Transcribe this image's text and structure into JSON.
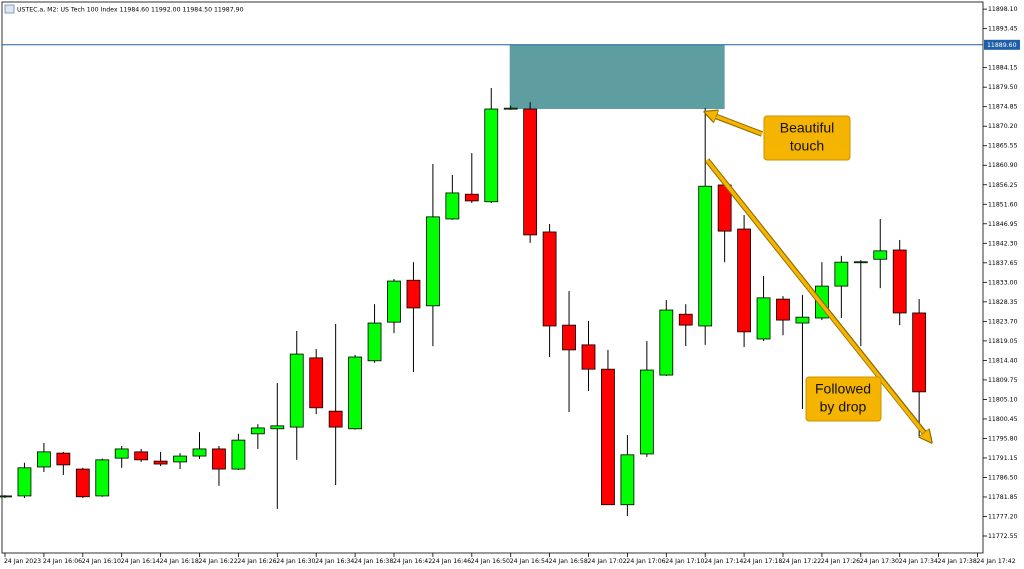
{
  "chart_data": {
    "type": "candlestick",
    "title": "USTEC.a, M2:  US Tech 100 Index  11984.60 11992.00 11984.50 11987.90",
    "open": [
      11782.1,
      11782.1,
      11789.0,
      11792.3,
      11788.5,
      11782.1,
      11791.1,
      11792.6,
      11790.4,
      11790.2,
      11791.6,
      11793.3,
      11788.5,
      11796.9,
      11798.1,
      11798.5,
      11815.0,
      11802.3,
      11798.1,
      11814.3,
      11823.5,
      11833.5,
      11827.4,
      11848.1,
      11854.0,
      11852.2,
      11874.3,
      11874.3,
      11845.0,
      11822.8,
      11818.1,
      11812.3,
      11780.0,
      11792.1,
      11810.9,
      11825.4,
      11822.6,
      11856.2,
      11845.7,
      11819.5,
      11829.0,
      11823.3,
      11824.5,
      11832.1,
      11837.8,
      11838.5,
      11840.7,
      11825.7
    ],
    "high": [
      11782.3,
      11790.0,
      11794.7,
      11792.6,
      11788.8,
      11791.0,
      11794.0,
      11793.3,
      11792.6,
      11792.3,
      11797.3,
      11794.0,
      11796.9,
      11799.2,
      11809.0,
      11821.4,
      11817.1,
      11823.1,
      11815.7,
      11827.8,
      11833.8,
      11837.8,
      11861.2,
      11858.6,
      11863.8,
      11879.3,
      11875.1,
      11875.9,
      11846.9,
      11830.9,
      11823.8,
      11816.9,
      11796.6,
      11819.0,
      11828.8,
      11827.8,
      11874.5,
      11857.1,
      11849.0,
      11834.5,
      11829.7,
      11830.0,
      11837.8,
      11839.3,
      11838.3,
      11848.1,
      11843.1,
      11829.0
    ],
    "low": [
      11781.6,
      11781.6,
      11787.8,
      11787.1,
      11781.6,
      11781.9,
      11788.8,
      11790.2,
      11789.2,
      11788.5,
      11790.9,
      11784.5,
      11788.3,
      11793.3,
      11779.0,
      11790.7,
      11801.6,
      11784.7,
      11797.9,
      11813.8,
      11820.9,
      11811.6,
      11817.8,
      11847.9,
      11851.9,
      11851.9,
      11874.1,
      11842.4,
      11815.2,
      11802.1,
      11807.1,
      11780.0,
      11777.3,
      11791.4,
      11810.7,
      11817.8,
      11818.1,
      11837.8,
      11817.6,
      11819.0,
      11820.4,
      11802.8,
      11824.0,
      11824.5,
      11817.8,
      11831.6,
      11822.8,
      11796.2
    ],
    "close": [
      11782.1,
      11788.8,
      11792.6,
      11789.5,
      11781.9,
      11790.7,
      11793.3,
      11790.7,
      11789.7,
      11791.6,
      11793.3,
      11788.5,
      11795.4,
      11798.3,
      11798.8,
      11815.9,
      11803.1,
      11798.5,
      11815.2,
      11823.3,
      11833.3,
      11826.9,
      11848.6,
      11854.3,
      11852.4,
      11874.3,
      11874.5,
      11844.3,
      11822.6,
      11816.9,
      11812.3,
      11780.0,
      11791.9,
      11812.1,
      11826.4,
      11822.8,
      11855.9,
      11845.2,
      11821.2,
      11829.3,
      11824.0,
      11824.7,
      11832.1,
      11837.8,
      11837.9,
      11840.5,
      11825.7,
      11806.9
    ],
    "up_color": "#00ff00",
    "down_color": "#ff0000",
    "ylim": [
      11768.5,
      11899.8
    ],
    "yticks": [
      {
        "value": 11898.1,
        "label": "11898.10"
      },
      {
        "value": 11893.45,
        "label": "11893.45"
      },
      {
        "value": 11884.15,
        "label": "11884.15"
      },
      {
        "value": 11879.5,
        "label": "11879.50"
      },
      {
        "value": 11874.85,
        "label": "11874.85"
      },
      {
        "value": 11870.2,
        "label": "11870.20"
      },
      {
        "value": 11865.55,
        "label": "11865.55"
      },
      {
        "value": 11860.9,
        "label": "11860.90"
      },
      {
        "value": 11856.25,
        "label": "11856.25"
      },
      {
        "value": 11851.6,
        "label": "11851.60"
      },
      {
        "value": 11846.95,
        "label": "11846.95"
      },
      {
        "value": 11842.3,
        "label": "11842.30"
      },
      {
        "value": 11837.65,
        "label": "11837.65"
      },
      {
        "value": 11833.0,
        "label": "11833.00"
      },
      {
        "value": 11828.35,
        "label": "11828.35"
      },
      {
        "value": 11823.7,
        "label": "11823.70"
      },
      {
        "value": 11819.05,
        "label": "11819.05"
      },
      {
        "value": 11814.4,
        "label": "11814.40"
      },
      {
        "value": 11809.75,
        "label": "11809.75"
      },
      {
        "value": 11805.1,
        "label": "11805.10"
      },
      {
        "value": 11800.45,
        "label": "11800.45"
      },
      {
        "value": 11795.8,
        "label": "11795.80"
      },
      {
        "value": 11791.15,
        "label": "11791.15"
      },
      {
        "value": 11786.5,
        "label": "11786.50"
      },
      {
        "value": 11781.85,
        "label": "11781.85"
      },
      {
        "value": 11777.2,
        "label": "11777.20"
      },
      {
        "value": 11772.55,
        "label": "11772.55"
      }
    ],
    "price_line": {
      "value": 11889.6,
      "label": "11889.60",
      "color": "#1f5fa6"
    },
    "zone": {
      "from": 11874.3,
      "to": 11889.6,
      "color": "#5f9ea0"
    },
    "xticks": [
      "24 Jan 2023",
      "24 Jan 16:06",
      "24 Jan 16:10",
      "24 Jan 16:14",
      "24 Jan 16:18",
      "24 Jan 16:22",
      "24 Jan 16:26",
      "24 Jan 16:30",
      "24 Jan 16:34",
      "24 Jan 16:38",
      "24 Jan 16:42",
      "24 Jan 16:46",
      "24 Jan 16:50",
      "24 Jan 16:54",
      "24 Jan 16:58",
      "24 Jan 17:02",
      "24 Jan 17:06",
      "24 Jan 17:10",
      "24 Jan 17:14",
      "24 Jan 17:18",
      "24 Jan 17:22",
      "24 Jan 17:26",
      "24 Jan 17:30",
      "24 Jan 17:34",
      "24 Jan 17:38",
      "24 Jan 17:42"
    ],
    "annotations": [
      {
        "lines": [
          "Beautiful",
          "touch"
        ]
      },
      {
        "lines": [
          "Followed",
          "by drop"
        ]
      }
    ]
  }
}
